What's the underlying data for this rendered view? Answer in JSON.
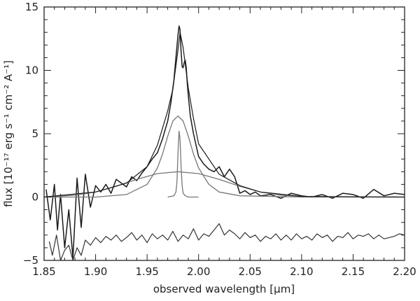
{
  "chart_data": {
    "type": "line",
    "title": "",
    "xlabel": "observed wavelength [μm]",
    "ylabel": "flux [10⁻¹⁷ erg s⁻¹ cm⁻² A⁻¹]",
    "xlim": [
      1.85,
      2.2
    ],
    "ylim": [
      -5,
      15
    ],
    "x_ticks": [
      1.85,
      1.9,
      1.95,
      2.0,
      2.05,
      2.1,
      2.15,
      2.2
    ],
    "x_tick_labels": [
      "1.85",
      "1.90",
      "1.95",
      "2.00",
      "2.05",
      "2.10",
      "2.15",
      "2.20"
    ],
    "y_ticks": [
      -5,
      0,
      5,
      10,
      15
    ],
    "y_tick_labels": [
      "−5",
      "0",
      "5",
      "10",
      "15"
    ],
    "grid": false,
    "colors": {
      "spectrum": "#1a1a1a",
      "components": "#777777",
      "residual": "#333333",
      "axes": "#222222"
    },
    "series": [
      {
        "role": "spectrum",
        "x": [
          1.852,
          1.856,
          1.86,
          1.863,
          1.866,
          1.87,
          1.874,
          1.878,
          1.882,
          1.886,
          1.89,
          1.895,
          1.9,
          1.905,
          1.91,
          1.915,
          1.92,
          1.925,
          1.93,
          1.935,
          1.94,
          1.945,
          1.95,
          1.955,
          1.96,
          1.965,
          1.97,
          1.973,
          1.976,
          1.978,
          1.98,
          1.981,
          1.982,
          1.983,
          1.984,
          1.985,
          1.986,
          1.987,
          1.988,
          1.989,
          1.99,
          1.992,
          1.995,
          2.0,
          2.005,
          2.01,
          2.015,
          2.02,
          2.025,
          2.03,
          2.035,
          2.04,
          2.045,
          2.05,
          2.055,
          2.06,
          2.07,
          2.08,
          2.09,
          2.1,
          2.11,
          2.12,
          2.13,
          2.14,
          2.15,
          2.16,
          2.17,
          2.18,
          2.19,
          2.2
        ],
        "y": [
          0.6,
          -1.8,
          1.0,
          -2.6,
          0.2,
          -4.0,
          -1.0,
          -4.8,
          1.5,
          -2.4,
          1.8,
          -0.8,
          0.9,
          0.4,
          1.0,
          0.3,
          1.4,
          1.1,
          0.8,
          1.6,
          1.3,
          1.9,
          2.4,
          3.0,
          3.5,
          4.6,
          6.0,
          7.4,
          9.2,
          11.0,
          12.8,
          13.5,
          13.2,
          11.5,
          10.3,
          10.2,
          10.6,
          10.8,
          10.2,
          9.0,
          8.0,
          6.4,
          5.0,
          3.2,
          2.6,
          2.2,
          2.0,
          2.4,
          1.6,
          2.2,
          1.6,
          0.3,
          0.5,
          0.2,
          0.4,
          0.1,
          0.2,
          -0.1,
          0.3,
          0.1,
          0.0,
          0.2,
          -0.1,
          0.3,
          0.2,
          -0.1,
          0.6,
          0.1,
          0.3,
          0.2
        ]
      },
      {
        "role": "narrow component",
        "x": [
          1.97,
          1.976,
          1.978,
          1.979,
          1.98,
          1.981,
          1.982,
          1.983,
          1.984,
          1.985,
          1.987,
          1.99,
          2.0
        ],
        "y": [
          0.0,
          0.1,
          0.4,
          1.2,
          3.5,
          5.2,
          4.6,
          2.4,
          0.9,
          0.3,
          0.1,
          0.0,
          0.0
        ]
      },
      {
        "role": "intermediate component",
        "x": [
          1.85,
          1.9,
          1.93,
          1.95,
          1.96,
          1.965,
          1.97,
          1.975,
          1.98,
          1.985,
          1.99,
          1.995,
          2.0,
          2.01,
          2.02,
          2.04,
          2.1,
          2.2
        ],
        "y": [
          0.0,
          0.0,
          0.2,
          1.0,
          2.3,
          3.4,
          4.8,
          6.0,
          6.4,
          6.0,
          4.8,
          3.4,
          2.3,
          1.0,
          0.4,
          0.1,
          0.0,
          0.0
        ]
      },
      {
        "role": "broad component",
        "x": [
          1.85,
          1.88,
          1.9,
          1.92,
          1.94,
          1.96,
          1.98,
          2.0,
          2.02,
          2.04,
          2.06,
          2.08,
          2.1,
          2.15,
          2.2
        ],
        "y": [
          0.0,
          0.15,
          0.4,
          0.85,
          1.4,
          1.85,
          2.0,
          1.85,
          1.4,
          0.85,
          0.4,
          0.15,
          0.05,
          0.0,
          0.0
        ]
      },
      {
        "role": "total fit",
        "x": [
          1.85,
          1.9,
          1.93,
          1.95,
          1.96,
          1.97,
          1.975,
          1.98,
          1.982,
          1.985,
          1.99,
          1.995,
          2.0,
          2.02,
          2.04,
          2.06,
          2.1,
          2.2
        ],
        "y": [
          0.0,
          0.4,
          1.1,
          2.4,
          4.1,
          6.8,
          8.5,
          11.6,
          13.0,
          11.8,
          8.6,
          6.2,
          4.2,
          1.8,
          0.9,
          0.4,
          0.05,
          0.0
        ]
      },
      {
        "role": "residual",
        "x": [
          1.855,
          1.858,
          1.862,
          1.866,
          1.87,
          1.874,
          1.878,
          1.882,
          1.886,
          1.89,
          1.895,
          1.9,
          1.905,
          1.91,
          1.915,
          1.92,
          1.925,
          1.93,
          1.935,
          1.94,
          1.945,
          1.95,
          1.955,
          1.96,
          1.965,
          1.97,
          1.975,
          1.98,
          1.985,
          1.99,
          1.995,
          2.0,
          2.005,
          2.01,
          2.015,
          2.02,
          2.025,
          2.03,
          2.035,
          2.04,
          2.045,
          2.05,
          2.055,
          2.06,
          2.065,
          2.07,
          2.075,
          2.08,
          2.085,
          2.09,
          2.095,
          2.1,
          2.105,
          2.11,
          2.115,
          2.12,
          2.125,
          2.13,
          2.135,
          2.14,
          2.145,
          2.15,
          2.155,
          2.16,
          2.165,
          2.17,
          2.175,
          2.18,
          2.185,
          2.19,
          2.195,
          2.2
        ],
        "y": [
          -3.5,
          -4.6,
          -3.0,
          -5.0,
          -4.2,
          -3.8,
          -5.0,
          -4.0,
          -4.6,
          -3.4,
          -3.8,
          -3.2,
          -3.6,
          -3.1,
          -3.4,
          -3.0,
          -3.5,
          -3.2,
          -2.8,
          -3.4,
          -3.0,
          -3.6,
          -2.9,
          -3.3,
          -3.0,
          -3.4,
          -2.7,
          -3.5,
          -3.0,
          -3.3,
          -2.5,
          -3.4,
          -2.9,
          -3.1,
          -2.6,
          -2.1,
          -3.0,
          -2.6,
          -2.9,
          -3.3,
          -2.8,
          -3.2,
          -3.0,
          -3.5,
          -3.1,
          -3.3,
          -2.9,
          -3.4,
          -3.0,
          -3.4,
          -2.9,
          -3.3,
          -3.1,
          -3.4,
          -2.9,
          -3.2,
          -3.0,
          -3.5,
          -3.1,
          -3.2,
          -2.8,
          -3.3,
          -3.0,
          -3.1,
          -2.9,
          -3.3,
          -3.0,
          -3.3,
          -3.2,
          -3.1,
          -2.9,
          -3.0
        ]
      }
    ]
  }
}
